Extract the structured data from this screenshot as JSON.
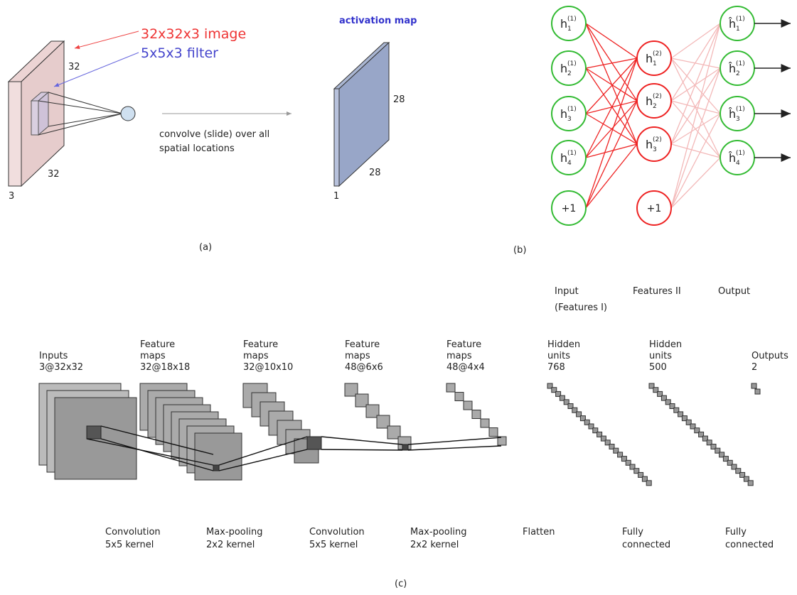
{
  "panel_a": {
    "image_label": "32x32x3 image",
    "filter_label": "5x5x3 filter",
    "input_height": "32",
    "input_width": "32",
    "input_depth": "3",
    "convolve_text": [
      "convolve (slide) over all",
      "spatial locations"
    ],
    "output_title": "activation map",
    "output_height": "28",
    "output_width": "28",
    "output_depth": "1",
    "caption": "(a)"
  },
  "panel_b": {
    "layer1": [
      {
        "base": "h",
        "sub": "1",
        "sup": "(1)"
      },
      {
        "base": "h",
        "sub": "2",
        "sup": "(1)"
      },
      {
        "base": "h",
        "sub": "3",
        "sup": "(1)"
      },
      {
        "base": "h",
        "sub": "4",
        "sup": "(1)"
      }
    ],
    "bias1": "+1",
    "layer2": [
      {
        "base": "h",
        "sub": "1",
        "sup": "(2)"
      },
      {
        "base": "h",
        "sub": "2",
        "sup": "(2)"
      },
      {
        "base": "h",
        "sub": "3",
        "sup": "(2)"
      }
    ],
    "bias2": "+1",
    "outputs": [
      {
        "base": "ĥ",
        "sub": "1",
        "sup": "(1)"
      },
      {
        "base": "ĥ",
        "sub": "2",
        "sup": "(1)"
      },
      {
        "base": "ĥ",
        "sub": "3",
        "sup": "(1)"
      },
      {
        "base": "ĥ",
        "sub": "4",
        "sup": "(1)"
      }
    ],
    "caption": "(b)"
  },
  "panel_c": {
    "group_labels": [
      {
        "lines": [
          "Input",
          "(Features I)"
        ]
      },
      {
        "lines": [
          "Features II"
        ]
      },
      {
        "lines": [
          "Output"
        ]
      }
    ],
    "layers": [
      {
        "lines": [
          "Inputs",
          "3@32x32"
        ]
      },
      {
        "lines": [
          "Feature",
          "maps",
          "32@18x18"
        ]
      },
      {
        "lines": [
          "Feature",
          "maps",
          "32@10x10"
        ]
      },
      {
        "lines": [
          "Feature",
          "maps",
          "48@6x6"
        ]
      },
      {
        "lines": [
          "Feature",
          "maps",
          "48@4x4"
        ]
      },
      {
        "lines": [
          "Hidden",
          "units",
          "768"
        ]
      },
      {
        "lines": [
          "Hidden",
          "units",
          "500"
        ]
      },
      {
        "lines": [
          "Outputs",
          "2"
        ]
      }
    ],
    "operations": [
      {
        "lines": [
          "Convolution",
          "5x5 kernel"
        ]
      },
      {
        "lines": [
          "Max-pooling",
          "2x2 kernel"
        ]
      },
      {
        "lines": [
          "Convolution",
          "5x5 kernel"
        ]
      },
      {
        "lines": [
          "Max-pooling",
          "2x2 kernel"
        ]
      },
      {
        "lines": [
          "Flatten"
        ]
      },
      {
        "lines": [
          "Fully",
          "connected"
        ]
      },
      {
        "lines": [
          "Fully",
          "connected"
        ]
      }
    ],
    "caption": "(c)"
  }
}
